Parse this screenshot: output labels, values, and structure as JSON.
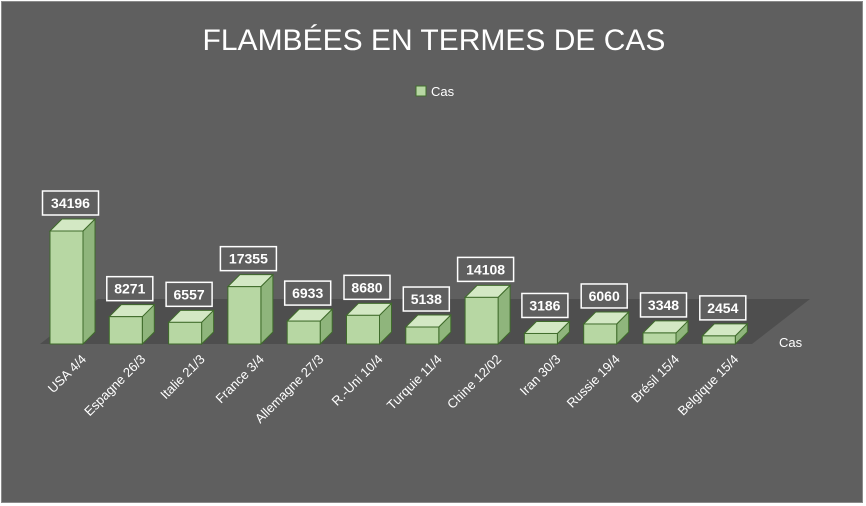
{
  "chart_data": {
    "type": "bar",
    "title": "FLAMBÉES EN TERMES DE CAS",
    "categories": [
      "USA 4/4",
      "Espagne 26/3",
      "Italie 21/3",
      "France 3/4",
      "Allemagne 27/3",
      "R.-Uni  10/4",
      "Turquie 11/4",
      "Chine  12/02",
      "Iran 30/3",
      "Russie 19/4",
      "Brésil 15/4",
      "Belgique 15/4"
    ],
    "series": [
      {
        "name": "Cas",
        "values": [
          34196,
          8271,
          6557,
          17355,
          6933,
          8680,
          5138,
          14108,
          3186,
          6060,
          3348,
          2454
        ]
      }
    ],
    "depth_axis_label": "Cas",
    "legend_position": "top",
    "grid": false,
    "colors": {
      "background": "#5f5f5f",
      "bar_front": "#b7d7a3",
      "bar_side": "#8fb57c",
      "bar_top": "#d3e8c4",
      "bar_outline": "#3f6b2b",
      "floor": "#4e4e4e",
      "label_box_fill": "#5f5f5f",
      "label_box_border": "#ffffff"
    }
  }
}
